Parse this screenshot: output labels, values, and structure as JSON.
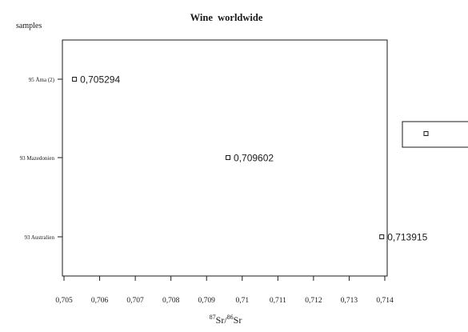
{
  "chart_data": {
    "type": "scatter",
    "title": "Wine  worldwide",
    "ylabel": "samples",
    "xlabel": {
      "isotope_a_mass": "87",
      "isotope_a_symbol": "Sr",
      "separator": "/",
      "isotope_b_mass": "86",
      "isotope_b_symbol": "Sr"
    },
    "xlim": [
      0.705,
      0.714
    ],
    "x_ticks": [
      {
        "value": 0.705,
        "label": "0,705"
      },
      {
        "value": 0.706,
        "label": "0,706"
      },
      {
        "value": 0.707,
        "label": "0,707"
      },
      {
        "value": 0.708,
        "label": "0,708"
      },
      {
        "value": 0.709,
        "label": "0,709"
      },
      {
        "value": 0.71,
        "label": "0,71"
      },
      {
        "value": 0.711,
        "label": "0,711"
      },
      {
        "value": 0.712,
        "label": "0,712"
      },
      {
        "value": 0.713,
        "label": "0,713"
      },
      {
        "value": 0.714,
        "label": "0,714"
      }
    ],
    "categories": [
      "95 Åma (2)",
      "93 Mazedonien",
      "93 Australien"
    ],
    "points": [
      {
        "category": "95 Åma (2)",
        "x": 0.705294,
        "label": "0,705294"
      },
      {
        "category": "93 Mazedonien",
        "x": 0.709602,
        "label": "0,709602"
      },
      {
        "category": "93 Australien",
        "x": 0.713915,
        "label": "0,713915"
      }
    ],
    "grid": false,
    "legend": {
      "placement": "right",
      "marker": "open-square",
      "text": ""
    },
    "colors": {
      "ink": "#1a1a1a",
      "background": "#ffffff"
    }
  }
}
